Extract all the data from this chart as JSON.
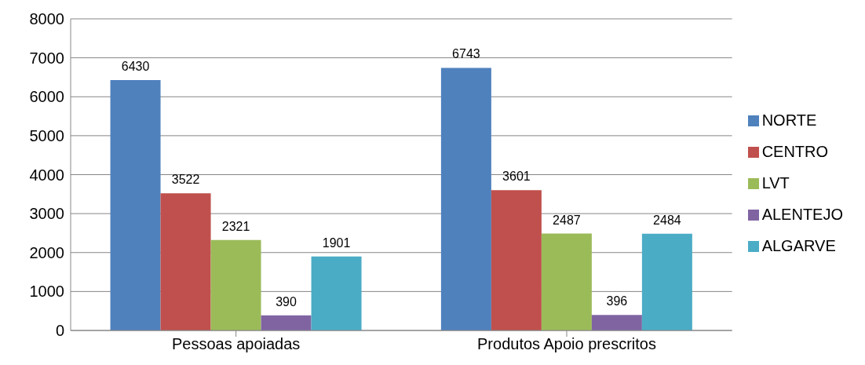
{
  "chart_data": {
    "type": "bar",
    "categories": [
      "Pessoas apoiadas",
      "Produtos Apoio prescritos"
    ],
    "series": [
      {
        "name": "NORTE",
        "color": "#4f81bd",
        "values": [
          6430,
          6743
        ]
      },
      {
        "name": "CENTRO",
        "color": "#c0504d",
        "values": [
          3522,
          3601
        ]
      },
      {
        "name": "LVT",
        "color": "#9bbb59",
        "values": [
          2321,
          2487
        ]
      },
      {
        "name": "ALENTEJO",
        "color": "#8064a2",
        "values": [
          390,
          396
        ]
      },
      {
        "name": "ALGARVE",
        "color": "#4bacc6",
        "values": [
          1901,
          2484
        ]
      }
    ],
    "ylim": [
      0,
      8000
    ],
    "yticks": [
      0,
      1000,
      2000,
      3000,
      4000,
      5000,
      6000,
      7000,
      8000
    ],
    "grid": "y",
    "legend": "right",
    "data_labels": true
  }
}
